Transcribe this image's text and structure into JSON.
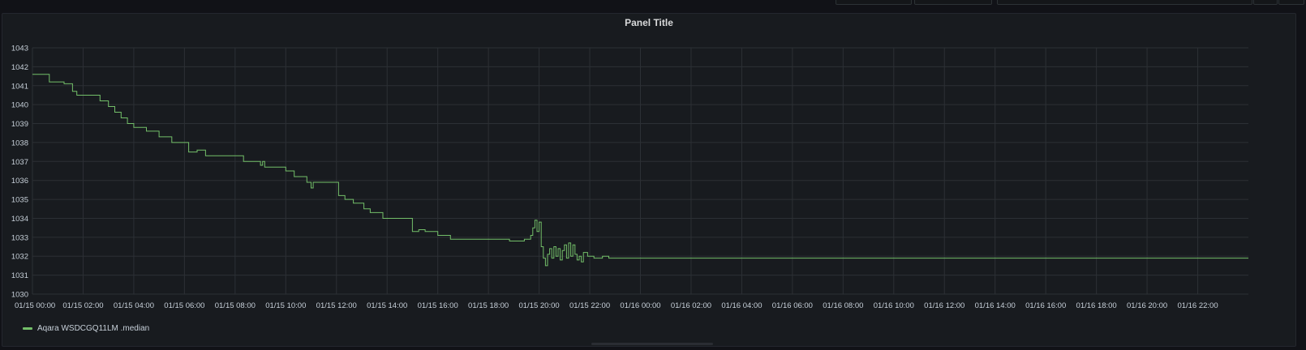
{
  "panel": {
    "title": "Panel Title"
  },
  "colors": {
    "series": "#73bf69",
    "grid": "#2c3035",
    "text": "#c7d0d9"
  },
  "chart_data": {
    "type": "line",
    "title": "Panel Title",
    "xlabel": "",
    "ylabel": "",
    "x_range": [
      "01/15 00:00",
      "01/17 00:00"
    ],
    "ylim": [
      1030,
      1043
    ],
    "y_ticks": [
      1030,
      1031,
      1032,
      1033,
      1034,
      1035,
      1036,
      1037,
      1038,
      1039,
      1040,
      1041,
      1042,
      1043
    ],
    "x_ticks": [
      "01/15 00:00",
      "01/15 02:00",
      "01/15 04:00",
      "01/15 06:00",
      "01/15 08:00",
      "01/15 10:00",
      "01/15 12:00",
      "01/15 14:00",
      "01/15 16:00",
      "01/15 18:00",
      "01/15 20:00",
      "01/15 22:00",
      "01/16 00:00",
      "01/16 02:00",
      "01/16 04:00",
      "01/16 06:00",
      "01/16 08:00",
      "01/16 10:00",
      "01/16 12:00",
      "01/16 14:00",
      "01/16 16:00",
      "01/16 18:00",
      "01/16 20:00",
      "01/16 22:00"
    ],
    "grid": true,
    "legend": "bottom-left",
    "series": [
      {
        "name": "Aqara WSDCGQ11LM .median",
        "step": true,
        "points": [
          [
            "01/15 00:00",
            1041.6
          ],
          [
            "01/15 00:40",
            1041.2
          ],
          [
            "01/15 01:15",
            1041.1
          ],
          [
            "01/15 01:35",
            1040.7
          ],
          [
            "01/15 01:45",
            1040.5
          ],
          [
            "01/15 02:40",
            1040.2
          ],
          [
            "01/15 03:00",
            1039.9
          ],
          [
            "01/15 03:15",
            1039.6
          ],
          [
            "01/15 03:30",
            1039.3
          ],
          [
            "01/15 03:45",
            1039.0
          ],
          [
            "01/15 04:00",
            1038.8
          ],
          [
            "01/15 04:30",
            1038.6
          ],
          [
            "01/15 05:00",
            1038.3
          ],
          [
            "01/15 05:30",
            1038.0
          ],
          [
            "01/15 06:10",
            1037.5
          ],
          [
            "01/15 06:30",
            1037.6
          ],
          [
            "01/15 06:50",
            1037.3
          ],
          [
            "01/15 08:20",
            1037.0
          ],
          [
            "01/15 09:00",
            1036.8
          ],
          [
            "01/15 09:05",
            1037.0
          ],
          [
            "01/15 09:10",
            1036.7
          ],
          [
            "01/15 10:00",
            1036.5
          ],
          [
            "01/15 10:20",
            1036.2
          ],
          [
            "01/15 10:50",
            1035.9
          ],
          [
            "01/15 11:00",
            1035.6
          ],
          [
            "01/15 11:05",
            1035.9
          ],
          [
            "01/15 12:05",
            1035.2
          ],
          [
            "01/15 12:20",
            1035.0
          ],
          [
            "01/15 12:40",
            1034.8
          ],
          [
            "01/15 13:05",
            1034.5
          ],
          [
            "01/15 13:20",
            1034.3
          ],
          [
            "01/15 13:50",
            1034.0
          ],
          [
            "01/15 15:00",
            1033.3
          ],
          [
            "01/15 15:15",
            1033.4
          ],
          [
            "01/15 15:30",
            1033.3
          ],
          [
            "01/15 16:00",
            1033.1
          ],
          [
            "01/15 16:30",
            1032.9
          ],
          [
            "01/15 18:50",
            1032.8
          ],
          [
            "01/15 19:25",
            1032.9
          ],
          [
            "01/15 19:40",
            1033.1
          ],
          [
            "01/15 19:45",
            1033.5
          ],
          [
            "01/15 19:50",
            1033.9
          ],
          [
            "01/15 19:55",
            1033.3
          ],
          [
            "01/15 20:00",
            1033.8
          ],
          [
            "01/15 20:05",
            1032.5
          ],
          [
            "01/15 20:10",
            1031.9
          ],
          [
            "01/15 20:15",
            1031.5
          ],
          [
            "01/15 20:20",
            1032.1
          ],
          [
            "01/15 20:25",
            1032.4
          ],
          [
            "01/15 20:30",
            1031.9
          ],
          [
            "01/15 20:35",
            1032.5
          ],
          [
            "01/15 20:40",
            1032.0
          ],
          [
            "01/15 20:45",
            1032.4
          ],
          [
            "01/15 20:50",
            1031.8
          ],
          [
            "01/15 20:55",
            1032.3
          ],
          [
            "01/15 21:00",
            1032.6
          ],
          [
            "01/15 21:05",
            1031.9
          ],
          [
            "01/15 21:10",
            1032.7
          ],
          [
            "01/15 21:15",
            1032.0
          ],
          [
            "01/15 21:20",
            1032.6
          ],
          [
            "01/15 21:25",
            1032.1
          ],
          [
            "01/15 21:30",
            1031.8
          ],
          [
            "01/15 21:35",
            1032.0
          ],
          [
            "01/15 21:40",
            1031.7
          ],
          [
            "01/15 21:45",
            1032.2
          ],
          [
            "01/15 21:55",
            1032.0
          ],
          [
            "01/15 22:10",
            1031.9
          ],
          [
            "01/15 22:30",
            1032.0
          ],
          [
            "01/15 22:45",
            1031.9
          ],
          [
            "01/17 00:00",
            1031.9
          ]
        ]
      }
    ]
  }
}
